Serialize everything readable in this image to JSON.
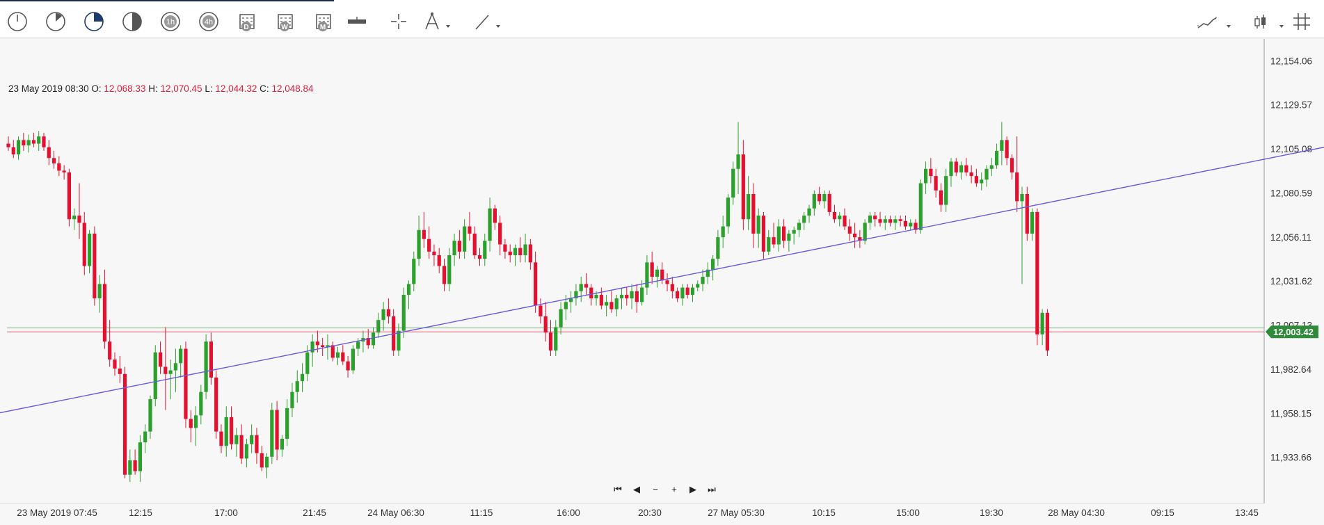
{
  "toolbar": {
    "tools": [
      {
        "icon": "clock-1m-icon"
      },
      {
        "icon": "clock-5m-icon"
      },
      {
        "icon": "clock-15m-icon",
        "selected": true
      },
      {
        "icon": "clock-30m-icon"
      },
      {
        "label": "1h",
        "icon": "clock-1h-icon"
      },
      {
        "label": "4h",
        "icon": "clock-4h-icon"
      },
      {
        "label": "D",
        "icon": "calendar-day-icon"
      },
      {
        "label": "W",
        "icon": "calendar-week-icon"
      },
      {
        "label": "M",
        "icon": "calendar-month-icon"
      },
      {
        "icon": "horizontal-ruler-icon"
      },
      {
        "icon": "crosshair-icon"
      },
      {
        "icon": "compass-draw-icon"
      },
      {
        "icon": "trend-line-tool-icon"
      }
    ],
    "right_tools": [
      {
        "icon": "chart-style-icon"
      },
      {
        "icon": "candle-type-icon"
      },
      {
        "icon": "grid-icon"
      }
    ]
  },
  "ohlc": {
    "date": "23 May 2019 08:30",
    "open_label": "O:",
    "open": "12,068.33",
    "high_label": "H:",
    "high": "12,070.45",
    "low_label": "L:",
    "low": "12,044.32",
    "close_label": "C:",
    "close": "12,048.84"
  },
  "nav_buttons": [
    {
      "name": "go-start-button",
      "glyph": "⏮"
    },
    {
      "name": "scroll-left-button",
      "glyph": "◀"
    },
    {
      "name": "zoom-out-button",
      "glyph": "−"
    },
    {
      "name": "zoom-in-button",
      "glyph": "+"
    },
    {
      "name": "scroll-right-button",
      "glyph": "▶"
    },
    {
      "name": "go-end-button",
      "glyph": "⏭"
    }
  ],
  "colors": {
    "up": "#2ca02c",
    "down": "#e3102f",
    "trendline": "#6a5ae0",
    "price_badge": "#2e8b3a",
    "background": "#f7f7f7"
  },
  "chart_data": {
    "type": "candlestick",
    "ylim": [
      11915,
      12160
    ],
    "y_ticks": [
      "12,154.06",
      "12,129.57",
      "12,105.08",
      "12,080.59",
      "12,056.11",
      "12,031.62",
      "12,007.13",
      "11,982.64",
      "11,958.15",
      "11,933.66"
    ],
    "y_tick_values": [
      12154.06,
      12129.57,
      12105.08,
      12080.59,
      12056.11,
      12031.62,
      12007.13,
      11982.64,
      11958.15,
      11933.66
    ],
    "x_ticks": [
      "23 May 2019 07:45",
      "12:15",
      "17:00",
      "21:45",
      "24 May 06:30",
      "11:15",
      "16:00",
      "20:30",
      "27 May 05:30",
      "10:15",
      "15:00",
      "19:30",
      "28 May 04:30",
      "09:15",
      "13:45"
    ],
    "current_price": "12,003.42",
    "current_price_value": 12003.42,
    "reference_line_value": 12005.6,
    "trend_line": {
      "from": {
        "index": -75,
        "value": 11917
      },
      "to": {
        "index": 295,
        "value": 12126
      }
    },
    "candles_ohlc": [
      [
        12108,
        12112,
        12104,
        12106
      ],
      [
        12106,
        12110,
        12100,
        12102
      ],
      [
        12102,
        12112,
        12099,
        12110
      ],
      [
        12110,
        12114,
        12104,
        12107
      ],
      [
        12107,
        12113,
        12103,
        12110
      ],
      [
        12110,
        12114,
        12106,
        12108
      ],
      [
        12108,
        12115,
        12104,
        12112
      ],
      [
        12112,
        12114,
        12104,
        12106
      ],
      [
        12106,
        12110,
        12096,
        12100
      ],
      [
        12100,
        12104,
        12094,
        12097
      ],
      [
        12097,
        12101,
        12090,
        12093
      ],
      [
        12093,
        12096,
        12088,
        12092
      ],
      [
        12092,
        12094,
        12062,
        12066
      ],
      [
        12066,
        12072,
        12060,
        12068
      ],
      [
        12068,
        12086,
        12055,
        12064
      ],
      [
        12064,
        12070,
        12035,
        12040
      ],
      [
        12040,
        12060,
        12036,
        12058
      ],
      [
        12058,
        12062,
        12018,
        12022
      ],
      [
        12022,
        12035,
        12014,
        12030
      ],
      [
        12030,
        12038,
        11994,
        11998
      ],
      [
        11998,
        12010,
        11984,
        11988
      ],
      [
        11988,
        11992,
        11979,
        11983
      ],
      [
        11983,
        11990,
        11975,
        11980
      ],
      [
        11980,
        11984,
        11922,
        11924
      ],
      [
        11924,
        11938,
        11920,
        11932
      ],
      [
        11932,
        11938,
        11924,
        11926
      ],
      [
        11926,
        11946,
        11920,
        11942
      ],
      [
        11942,
        11952,
        11936,
        11948
      ],
      [
        11948,
        11968,
        11944,
        11966
      ],
      [
        11966,
        11996,
        11962,
        11992
      ],
      [
        11992,
        11998,
        11980,
        11984
      ],
      [
        11984,
        12006,
        11960,
        11980
      ],
      [
        11980,
        11988,
        11966,
        11982
      ],
      [
        11982,
        11994,
        11970,
        11986
      ],
      [
        11986,
        11996,
        11978,
        11994
      ],
      [
        11994,
        11998,
        11950,
        11955
      ],
      [
        11955,
        11960,
        11942,
        11950
      ],
      [
        11950,
        11962,
        11940,
        11957
      ],
      [
        11957,
        11974,
        11952,
        11970
      ],
      [
        11970,
        12002,
        11966,
        11998
      ],
      [
        11998,
        12003,
        11974,
        11978
      ],
      [
        11978,
        11982,
        11944,
        11948
      ],
      [
        11948,
        11952,
        11936,
        11940
      ],
      [
        11940,
        11962,
        11934,
        11956
      ],
      [
        11956,
        11962,
        11938,
        11941
      ],
      [
        11941,
        11950,
        11934,
        11946
      ],
      [
        11946,
        11952,
        11930,
        11933
      ],
      [
        11933,
        11944,
        11928,
        11941
      ],
      [
        11941,
        11952,
        11936,
        11946
      ],
      [
        11946,
        11950,
        11930,
        11936
      ],
      [
        11936,
        11940,
        11926,
        11928
      ],
      [
        11928,
        11936,
        11922,
        11934
      ],
      [
        11934,
        11964,
        11930,
        11960
      ],
      [
        11960,
        11965,
        11932,
        11938
      ],
      [
        11938,
        11946,
        11934,
        11944
      ],
      [
        11944,
        11966,
        11940,
        11961
      ],
      [
        11961,
        11975,
        11956,
        11970
      ],
      [
        11970,
        11982,
        11964,
        11976
      ],
      [
        11976,
        11986,
        11970,
        11980
      ],
      [
        11980,
        11996,
        11976,
        11992
      ],
      [
        11992,
        12002,
        11984,
        11998
      ],
      [
        11998,
        12004,
        11992,
        11996
      ],
      [
        11996,
        12000,
        11990,
        11995
      ],
      [
        11995,
        12002,
        11988,
        11996
      ],
      [
        11996,
        11998,
        11987,
        11989
      ],
      [
        11989,
        11995,
        11985,
        11992
      ],
      [
        11992,
        11996,
        11985,
        11987
      ],
      [
        11987,
        11990,
        11978,
        11982
      ],
      [
        11982,
        11996,
        11980,
        11994
      ],
      [
        11994,
        12000,
        11990,
        11998
      ],
      [
        11998,
        12004,
        11992,
        12000
      ],
      [
        12000,
        12005,
        11994,
        11996
      ],
      [
        11996,
        12006,
        11994,
        12003
      ],
      [
        12003,
        12014,
        12000,
        12010
      ],
      [
        12010,
        12020,
        12004,
        12016
      ],
      [
        12016,
        12022,
        12008,
        12012
      ],
      [
        12012,
        12016,
        11990,
        11993
      ],
      [
        11993,
        12008,
        11990,
        12004
      ],
      [
        12004,
        12028,
        12000,
        12024
      ],
      [
        12024,
        12032,
        12016,
        12030
      ],
      [
        12030,
        12048,
        12026,
        12044
      ],
      [
        12044,
        12068,
        12040,
        12060
      ],
      [
        12060,
        12070,
        12050,
        12055
      ],
      [
        12055,
        12062,
        12044,
        12048
      ],
      [
        12048,
        12052,
        12040,
        12046
      ],
      [
        12046,
        12050,
        12036,
        12040
      ],
      [
        12040,
        12044,
        12026,
        12030
      ],
      [
        12030,
        12050,
        12026,
        12046
      ],
      [
        12046,
        12058,
        12040,
        12054
      ],
      [
        12054,
        12060,
        12044,
        12048
      ],
      [
        12048,
        12066,
        12044,
        12062
      ],
      [
        12062,
        12070,
        12054,
        12058
      ],
      [
        12058,
        12062,
        12044,
        12046
      ],
      [
        12046,
        12050,
        12040,
        12044
      ],
      [
        12044,
        12058,
        12040,
        12054
      ],
      [
        12054,
        12078,
        12048,
        12072
      ],
      [
        12072,
        12074,
        12060,
        12064
      ],
      [
        12064,
        12068,
        12046,
        12052
      ],
      [
        12052,
        12055,
        12044,
        12048
      ],
      [
        12048,
        12052,
        12042,
        12046
      ],
      [
        12046,
        12052,
        12040,
        12050
      ],
      [
        12050,
        12056,
        12042,
        12046
      ],
      [
        12046,
        12058,
        12042,
        12052
      ],
      [
        12052,
        12055,
        12038,
        12042
      ],
      [
        12042,
        12048,
        12014,
        12018
      ],
      [
        12018,
        12022,
        12008,
        12012
      ],
      [
        12012,
        12020,
        11998,
        12003
      ],
      [
        12003,
        12010,
        11990,
        11993
      ],
      [
        11993,
        12010,
        11990,
        12006
      ],
      [
        12006,
        12020,
        12002,
        12016
      ],
      [
        12016,
        12024,
        12010,
        12020
      ],
      [
        12020,
        12026,
        12014,
        12022
      ],
      [
        12022,
        12030,
        12018,
        12026
      ],
      [
        12026,
        12034,
        12020,
        12030
      ],
      [
        12030,
        12036,
        12024,
        12028
      ],
      [
        12028,
        12030,
        12018,
        12022
      ],
      [
        12022,
        12026,
        12018,
        12024
      ],
      [
        12024,
        12028,
        12016,
        12018
      ],
      [
        12018,
        12024,
        12012,
        12020
      ],
      [
        12020,
        12026,
        12014,
        12016
      ],
      [
        12016,
        12024,
        12012,
        12022
      ],
      [
        12022,
        12028,
        12016,
        12024
      ],
      [
        12024,
        12028,
        12018,
        12022
      ],
      [
        12022,
        12030,
        12016,
        12026
      ],
      [
        12026,
        12030,
        12014,
        12020
      ],
      [
        12020,
        12032,
        12018,
        12028
      ],
      [
        12028,
        12046,
        12024,
        12042
      ],
      [
        12042,
        12048,
        12030,
        12034
      ],
      [
        12034,
        12040,
        12028,
        12038
      ],
      [
        12038,
        12042,
        12030,
        12032
      ],
      [
        12032,
        12036,
        12026,
        12030
      ],
      [
        12030,
        12034,
        12022,
        12026
      ],
      [
        12026,
        12028,
        12020,
        12022
      ],
      [
        12022,
        12030,
        12018,
        12028
      ],
      [
        12028,
        12030,
        12022,
        12024
      ],
      [
        12024,
        12030,
        12020,
        12028
      ],
      [
        12028,
        12032,
        12026,
        12030
      ],
      [
        12030,
        12038,
        12026,
        12034
      ],
      [
        12034,
        12042,
        12030,
        12038
      ],
      [
        12038,
        12046,
        12032,
        12044
      ],
      [
        12044,
        12060,
        12040,
        12056
      ],
      [
        12056,
        12068,
        12050,
        12062
      ],
      [
        12062,
        12080,
        12058,
        12078
      ],
      [
        12078,
        12098,
        12074,
        12094
      ],
      [
        12094,
        12120,
        12080,
        12102
      ],
      [
        12102,
        12110,
        12060,
        12066
      ],
      [
        12066,
        12090,
        12060,
        12080
      ],
      [
        12080,
        12086,
        12050,
        12058
      ],
      [
        12058,
        12072,
        12050,
        12068
      ],
      [
        12068,
        12070,
        12044,
        12048
      ],
      [
        12048,
        12060,
        12046,
        12056
      ],
      [
        12056,
        12064,
        12050,
        12052
      ],
      [
        12052,
        12066,
        12048,
        12062
      ],
      [
        12062,
        12066,
        12050,
        12054
      ],
      [
        12054,
        12060,
        12048,
        12058
      ],
      [
        12058,
        12062,
        12052,
        12060
      ],
      [
        12060,
        12066,
        12056,
        12064
      ],
      [
        12064,
        12070,
        12060,
        12068
      ],
      [
        12068,
        12074,
        12064,
        12072
      ],
      [
        12072,
        12082,
        12068,
        12080
      ],
      [
        12080,
        12084,
        12074,
        12076
      ],
      [
        12076,
        12082,
        12072,
        12080
      ],
      [
        12080,
        12082,
        12068,
        12070
      ],
      [
        12070,
        12074,
        12064,
        12066
      ],
      [
        12066,
        12070,
        12062,
        12068
      ],
      [
        12068,
        12072,
        12060,
        12062
      ],
      [
        12062,
        12066,
        12054,
        12058
      ],
      [
        12058,
        12064,
        12050,
        12056
      ],
      [
        12056,
        12060,
        12050,
        12054
      ],
      [
        12054,
        12066,
        12052,
        12064
      ],
      [
        12064,
        12070,
        12060,
        12068
      ],
      [
        12068,
        12070,
        12062,
        12066
      ],
      [
        12066,
        12070,
        12062,
        12064
      ],
      [
        12064,
        12068,
        12060,
        12066
      ],
      [
        12066,
        12068,
        12062,
        12064
      ],
      [
        12064,
        12068,
        12060,
        12066
      ],
      [
        12066,
        12068,
        12062,
        12065
      ],
      [
        12065,
        12068,
        12060,
        12062
      ],
      [
        12062,
        12066,
        12060,
        12064
      ],
      [
        12064,
        12066,
        12058,
        12060
      ],
      [
        12060,
        12088,
        12058,
        12086
      ],
      [
        12086,
        12098,
        12080,
        12094
      ],
      [
        12094,
        12100,
        12086,
        12090
      ],
      [
        12090,
        12094,
        12078,
        12082
      ],
      [
        12082,
        12086,
        12070,
        12074
      ],
      [
        12074,
        12094,
        12070,
        12090
      ],
      [
        12090,
        12100,
        12084,
        12098
      ],
      [
        12098,
        12100,
        12090,
        12092
      ],
      [
        12092,
        12098,
        12088,
        12096
      ],
      [
        12096,
        12100,
        12090,
        12092
      ],
      [
        12092,
        12096,
        12086,
        12090
      ],
      [
        12090,
        12094,
        12084,
        12086
      ],
      [
        12086,
        12092,
        12082,
        12088
      ],
      [
        12088,
        12096,
        12084,
        12094
      ],
      [
        12094,
        12100,
        12090,
        12096
      ],
      [
        12096,
        12108,
        12094,
        12104
      ],
      [
        12104,
        12120,
        12096,
        12110
      ],
      [
        12110,
        12112,
        12096,
        12100
      ],
      [
        12100,
        12102,
        12088,
        12092
      ],
      [
        12092,
        12112,
        12070,
        12076
      ],
      [
        12076,
        12084,
        12030,
        12080
      ],
      [
        12080,
        12084,
        12054,
        12058
      ],
      [
        12058,
        12072,
        12054,
        12070
      ],
      [
        12070,
        12072,
        11996,
        12002
      ],
      [
        12002,
        12016,
        11996,
        12014
      ],
      [
        12014,
        12016,
        11990,
        11993
      ]
    ]
  }
}
